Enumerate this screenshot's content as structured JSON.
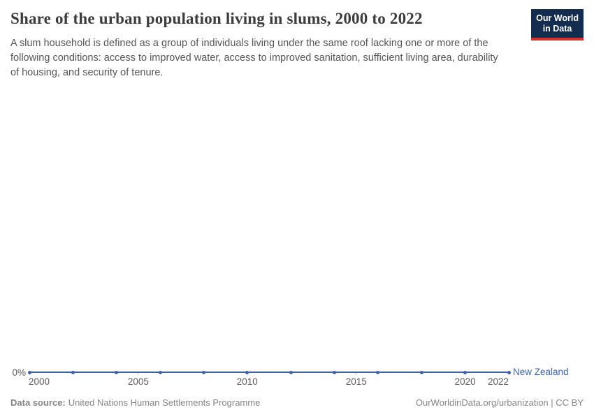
{
  "header": {
    "title": "Share of the urban population living in slums, 2000 to 2022",
    "subtitle_lines": [
      "A slum household is defined as a group of individuals living under the same roof lacking one or more of the",
      "following conditions: access to improved water, access to improved sanitation, sufficient living area, durability",
      "of housing, and security of tenure."
    ],
    "logo": {
      "line1": "Our World",
      "line2": "in Data",
      "bg_color": "#132c4f",
      "bar_color": "#d13438"
    }
  },
  "chart_data": {
    "type": "line",
    "title": "Share of the urban population living in slums, 2000 to 2022",
    "x": [
      2000,
      2002,
      2004,
      2006,
      2008,
      2010,
      2012,
      2014,
      2016,
      2018,
      2020,
      2022
    ],
    "series": [
      {
        "name": "New Zealand",
        "values": [
          0,
          0,
          0,
          0,
          0,
          0,
          0,
          0,
          0,
          0,
          0,
          0
        ],
        "color": "#3d63a9"
      }
    ],
    "unit": "%",
    "y_tick_labels": [
      "0%"
    ],
    "ylim": [
      0,
      0
    ],
    "x_tick_labels": [
      "2000",
      "2005",
      "2010",
      "2015",
      "2020",
      "2022"
    ],
    "xlim": [
      2000,
      2022
    ],
    "grid": false,
    "legend_position": "end-of-line"
  },
  "footer": {
    "datasource_label": "Data source:",
    "datasource_value": "United Nations Human Settlements Programme",
    "attribution": "OurWorldinData.org/urbanization | CC BY"
  },
  "colors": {
    "line": "#3d63a9",
    "axis_text": "#5b5b5b",
    "tick": "#c8c8c8",
    "title_text": "#3c3c3c",
    "subtitle_text": "#565656",
    "footer_text": "#858585"
  }
}
